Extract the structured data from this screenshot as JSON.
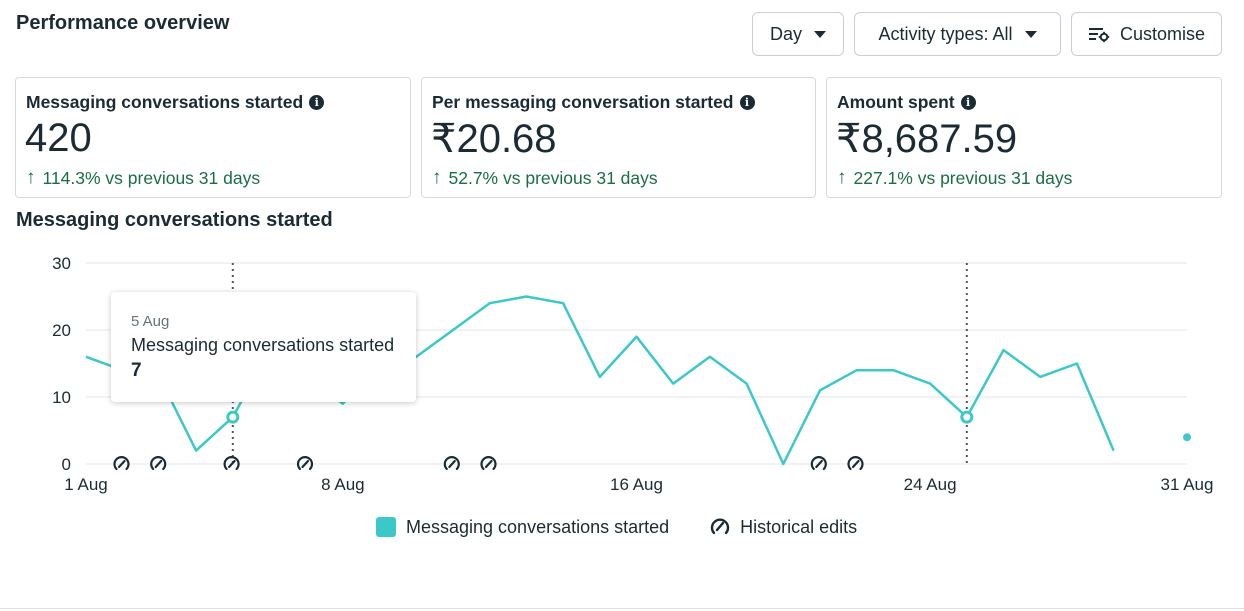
{
  "header": {
    "title": "Performance overview",
    "period_label": "Day",
    "activity_label": "Activity types: All",
    "customise_label": "Customise"
  },
  "metrics": [
    {
      "label": "Messaging conversations started",
      "value": "420",
      "change": "114.3% vs previous 31 days"
    },
    {
      "label": "Per messaging conversation started",
      "value": "₹20.68",
      "change": "52.7% vs previous 31 days"
    },
    {
      "label": "Amount spent",
      "value": "₹8,687.59",
      "change": "227.1% vs previous 31 days"
    }
  ],
  "colors": {
    "series": "#3cc8c8",
    "positive_change": "#1a6e45",
    "text": "#1c2b33"
  },
  "tooltip": {
    "date": "5 Aug",
    "series": "Messaging conversations started",
    "value": "7"
  },
  "chart_data": {
    "type": "line",
    "title": "Messaging conversations started",
    "xlabel": "",
    "ylabel": "",
    "x": [
      1,
      2,
      3,
      4,
      5,
      6,
      7,
      8,
      9,
      10,
      11,
      12,
      13,
      14,
      15,
      16,
      17,
      18,
      19,
      20,
      21,
      22,
      23,
      24,
      25,
      26,
      27,
      28,
      29,
      30,
      31
    ],
    "x_tick_labels": [
      {
        "day": 1,
        "label": "1 Aug"
      },
      {
        "day": 8,
        "label": "8 Aug"
      },
      {
        "day": 16,
        "label": "16 Aug"
      },
      {
        "day": 24,
        "label": "24 Aug"
      },
      {
        "day": 31,
        "label": "31 Aug"
      }
    ],
    "y_ticks": [
      0,
      10,
      20,
      30
    ],
    "ylim": [
      0,
      30
    ],
    "xlim": [
      1,
      31
    ],
    "series": [
      {
        "name": "Messaging conversations started",
        "values": [
          16,
          14,
          13,
          2,
          7,
          17,
          13,
          9,
          15,
          16,
          20,
          24,
          25,
          24,
          13,
          19,
          12,
          16,
          12,
          0,
          11,
          14,
          14,
          12,
          7,
          17,
          13,
          15,
          2,
          null,
          4
        ]
      }
    ],
    "markers_days": [
      5,
      25
    ],
    "historical_edit_days": [
      1,
      2,
      4,
      6,
      10,
      11,
      20,
      21
    ],
    "legend": [
      {
        "label": "Messaging conversations started",
        "kind": "series"
      },
      {
        "label": "Historical edits",
        "kind": "edits"
      }
    ],
    "legend_position": "bottom",
    "grid": true
  }
}
